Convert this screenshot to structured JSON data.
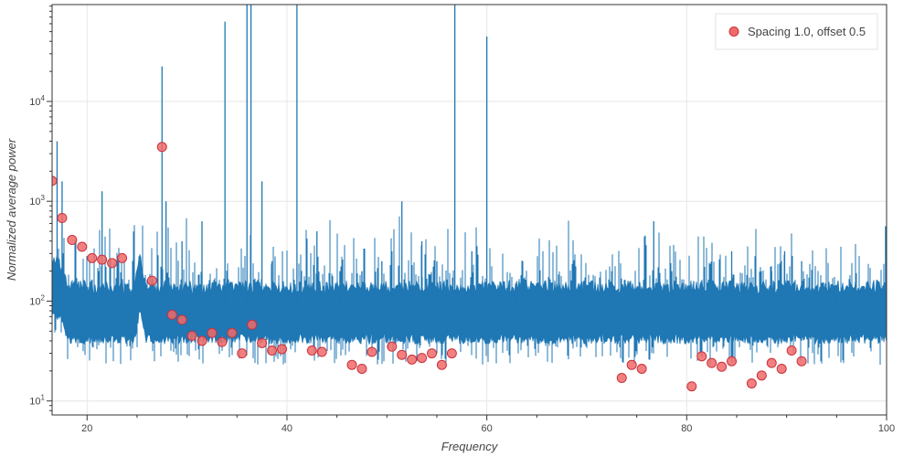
{
  "chart_data": {
    "type": "line",
    "xlabel": "Frequency",
    "ylabel": "Normalized average power",
    "xlim": [
      16.5,
      100
    ],
    "ylim_log10": [
      0.86,
      4.97
    ],
    "y_scale": "log",
    "grid": true,
    "legend_position": "top-right",
    "x_ticks": [
      20,
      40,
      60,
      80,
      100
    ],
    "y_ticks": [
      {
        "exp": 1,
        "base": "10",
        "sup": "1"
      },
      {
        "exp": 2,
        "base": "10",
        "sup": "2"
      },
      {
        "exp": 3,
        "base": "10",
        "sup": "3"
      },
      {
        "exp": 4,
        "base": "10",
        "sup": "4"
      }
    ],
    "colors": {
      "line": "#1f77b4",
      "marker_fill": "#f06a6a",
      "marker_stroke": "#c8323c",
      "grid": "#e6e6e6",
      "axis": "#333333"
    },
    "series": [
      {
        "type": "line",
        "baseline": [
          [
            16.5,
            2.2
          ],
          [
            17.5,
            2.1
          ],
          [
            18.5,
            1.8
          ],
          [
            20,
            1.55
          ],
          [
            22,
            1.5
          ],
          [
            24,
            1.6
          ],
          [
            25,
            1.95
          ],
          [
            26.5,
            1.75
          ],
          [
            28,
            1.4
          ],
          [
            30,
            1.1
          ],
          [
            32,
            1.07
          ],
          [
            34,
            1.06
          ],
          [
            36,
            1.05
          ],
          [
            38,
            1.04
          ],
          [
            40,
            1.05
          ],
          [
            42,
            1.06
          ],
          [
            44,
            1.06
          ],
          [
            46,
            1.05
          ],
          [
            48,
            1.05
          ],
          [
            50,
            1.06
          ],
          [
            52,
            1.08
          ],
          [
            54,
            1.12
          ],
          [
            56,
            1.18
          ],
          [
            57.5,
            1.3
          ],
          [
            59,
            1.15
          ],
          [
            61,
            1.05
          ],
          [
            63,
            1.0
          ],
          [
            66,
            0.97
          ],
          [
            70,
            0.95
          ],
          [
            75,
            0.97
          ],
          [
            80,
            0.98
          ],
          [
            85,
            0.98
          ],
          [
            90,
            1.03
          ],
          [
            95,
            1.0
          ],
          [
            100,
            0.98
          ]
        ],
        "humps": [
          [
            21.5,
            1.65,
            1.2
          ],
          [
            25.3,
            2.2,
            0.6
          ],
          [
            36.5,
            1.3,
            0.8
          ],
          [
            41,
            1.2,
            0.5
          ],
          [
            45.5,
            1.2,
            0.6
          ],
          [
            52,
            1.2,
            0.7
          ],
          [
            57,
            1.4,
            1.0
          ],
          [
            64.5,
            1.35,
            0.7
          ],
          [
            68.5,
            1.45,
            0.6
          ],
          [
            71,
            1.4,
            0.5
          ],
          [
            76.5,
            1.45,
            0.5
          ],
          [
            77,
            1.9,
            0.25
          ],
          [
            85,
            1.35,
            0.8
          ],
          [
            90,
            1.2,
            0.8
          ],
          [
            95,
            1.2,
            1.0
          ]
        ],
        "peaks": [
          [
            17,
            3.6
          ],
          [
            17.5,
            3.2
          ],
          [
            21.5,
            3.1
          ],
          [
            27.5,
            4.35
          ],
          [
            27.9,
            3.0
          ],
          [
            29.5,
            2.6
          ],
          [
            31.5,
            2.8
          ],
          [
            33.8,
            4.8
          ],
          [
            36,
            4.97
          ],
          [
            36.4,
            4.97
          ],
          [
            37.5,
            3.2
          ],
          [
            38.5,
            2.4
          ],
          [
            41,
            4.97
          ],
          [
            43,
            2.7
          ],
          [
            45.3,
            2.3
          ],
          [
            47.5,
            2.3
          ],
          [
            49.5,
            2.4
          ],
          [
            50.5,
            2.5
          ],
          [
            51.5,
            3.0
          ],
          [
            53.5,
            2.6
          ],
          [
            55,
            2.4
          ],
          [
            56.8,
            4.97
          ],
          [
            58.5,
            2.5
          ],
          [
            60,
            4.65
          ],
          [
            62.8,
            2.1
          ],
          [
            63,
            2.2
          ],
          [
            66.2,
            2.1
          ],
          [
            67.2,
            2.0
          ],
          [
            69.5,
            2.2
          ],
          [
            72.5,
            2.3
          ],
          [
            76.7,
            2.8
          ],
          [
            78.5,
            2.3
          ],
          [
            80.7,
            2.2
          ],
          [
            81.5,
            2.2
          ],
          [
            82.6,
            2.1
          ],
          [
            83.5,
            2.0
          ],
          [
            84.5,
            2.5
          ],
          [
            85.5,
            2.0
          ],
          [
            86.5,
            2.1
          ],
          [
            88.5,
            2.3
          ],
          [
            89.8,
            2.5
          ],
          [
            91.5,
            2.4
          ],
          [
            93,
            2.0
          ],
          [
            95,
            2.1
          ],
          [
            99.9,
            2.75
          ]
        ]
      },
      {
        "type": "scatter",
        "name": "Spacing 1.0, offset 0.5",
        "points": [
          [
            16.5,
            1600
          ],
          [
            17.5,
            680
          ],
          [
            18.5,
            410
          ],
          [
            19.5,
            350
          ],
          [
            20.5,
            270
          ],
          [
            21.5,
            260
          ],
          [
            22.5,
            240
          ],
          [
            23.5,
            270
          ],
          [
            26.5,
            160
          ],
          [
            27.5,
            3500
          ],
          [
            28.5,
            73
          ],
          [
            29.5,
            65
          ],
          [
            30.5,
            45
          ],
          [
            31.5,
            40
          ],
          [
            32.5,
            48
          ],
          [
            33.5,
            39
          ],
          [
            34.5,
            48
          ],
          [
            35.5,
            30
          ],
          [
            36.5,
            58
          ],
          [
            37.5,
            38
          ],
          [
            38.5,
            32
          ],
          [
            39.5,
            33
          ],
          [
            42.5,
            32
          ],
          [
            43.5,
            31
          ],
          [
            46.5,
            23
          ],
          [
            47.5,
            21
          ],
          [
            48.5,
            31
          ],
          [
            50.5,
            35
          ],
          [
            51.5,
            29
          ],
          [
            52.5,
            26
          ],
          [
            53.5,
            27
          ],
          [
            54.5,
            30
          ],
          [
            55.5,
            23
          ],
          [
            56.5,
            30
          ],
          [
            73.5,
            17
          ],
          [
            74.5,
            23
          ],
          [
            75.5,
            21
          ],
          [
            80.5,
            14
          ],
          [
            81.5,
            28
          ],
          [
            82.5,
            24
          ],
          [
            83.5,
            22
          ],
          [
            84.5,
            25
          ],
          [
            86.5,
            15
          ],
          [
            87.5,
            18
          ],
          [
            88.5,
            24
          ],
          [
            89.5,
            21
          ],
          [
            90.5,
            32
          ],
          [
            91.5,
            25
          ]
        ]
      }
    ]
  }
}
